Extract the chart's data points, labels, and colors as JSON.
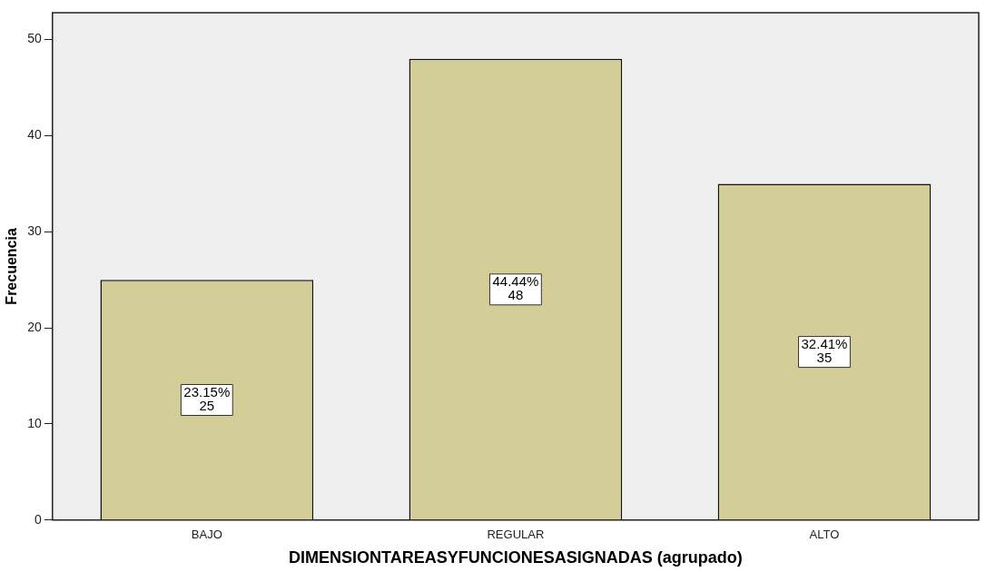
{
  "chart_data": {
    "type": "bar",
    "xlabel": "DIMENSIONTAREASYFUNCIONESASIGNADAS (agrupado)",
    "ylabel": "Frecuencia",
    "categories": [
      "BAJO",
      "REGULAR",
      "ALTO"
    ],
    "values": [
      25,
      48,
      35
    ],
    "color": "#d3cd97",
    "value_labels": [
      "23.15%\n25",
      "44.44%\n48",
      "32.41%\n35"
    ],
    "ylim": [
      0,
      52.8
    ],
    "yticks": [
      0,
      10,
      20,
      30,
      40,
      50
    ],
    "grid": false,
    "legend": false
  }
}
